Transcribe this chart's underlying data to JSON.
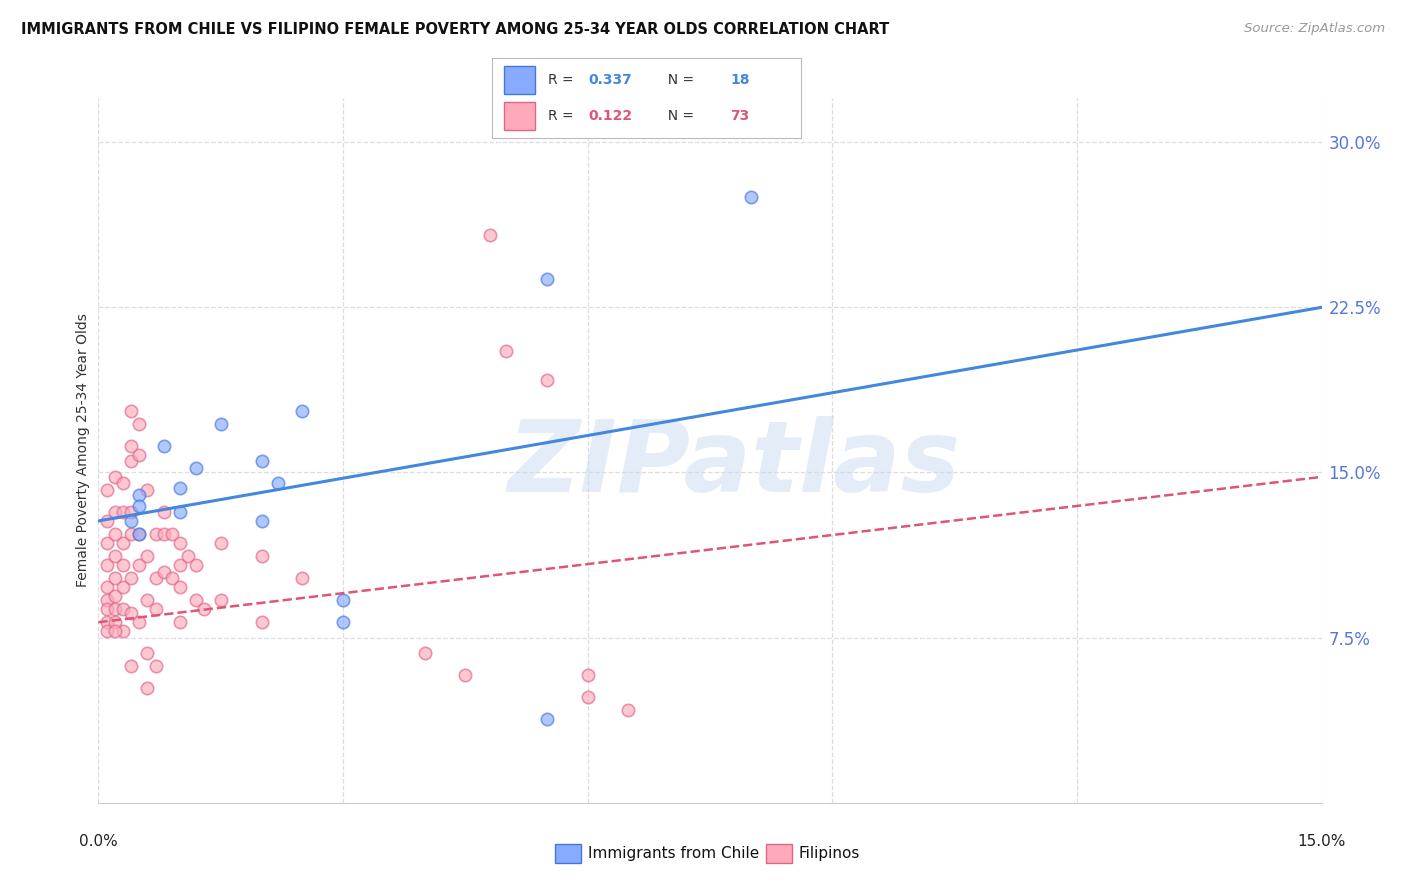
{
  "title": "IMMIGRANTS FROM CHILE VS FILIPINO FEMALE POVERTY AMONG 25-34 YEAR OLDS CORRELATION CHART",
  "source": "Source: ZipAtlas.com",
  "ylabel": "Female Poverty Among 25-34 Year Olds",
  "ytick_labels": [
    "7.5%",
    "15.0%",
    "22.5%",
    "30.0%"
  ],
  "ytick_values": [
    0.075,
    0.15,
    0.225,
    0.3
  ],
  "xlim": [
    0.0,
    0.15
  ],
  "ylim": [
    0.0,
    0.32
  ],
  "watermark": "ZIPatlas",
  "legend_series": [
    {
      "r_text": "R = ",
      "r_val": "0.337",
      "n_text": "   N = ",
      "n_val": "18",
      "color": "#6699ff"
    },
    {
      "r_text": "R = ",
      "r_val": "0.122",
      "n_text": "   N = ",
      "n_val": "73",
      "color": "#ff88aa"
    }
  ],
  "legend_bottom_labels": [
    "Immigrants from Chile",
    "Filipinos"
  ],
  "blue_scatter": [
    [
      0.005,
      0.14
    ],
    [
      0.005,
      0.135
    ],
    [
      0.004,
      0.128
    ],
    [
      0.005,
      0.122
    ],
    [
      0.008,
      0.162
    ],
    [
      0.01,
      0.143
    ],
    [
      0.01,
      0.132
    ],
    [
      0.012,
      0.152
    ],
    [
      0.015,
      0.172
    ],
    [
      0.02,
      0.155
    ],
    [
      0.02,
      0.128
    ],
    [
      0.022,
      0.145
    ],
    [
      0.025,
      0.178
    ],
    [
      0.03,
      0.092
    ],
    [
      0.03,
      0.082
    ],
    [
      0.055,
      0.238
    ],
    [
      0.08,
      0.275
    ],
    [
      0.055,
      0.038
    ]
  ],
  "pink_scatter": [
    [
      0.001,
      0.142
    ],
    [
      0.001,
      0.128
    ],
    [
      0.001,
      0.118
    ],
    [
      0.001,
      0.108
    ],
    [
      0.001,
      0.098
    ],
    [
      0.001,
      0.092
    ],
    [
      0.001,
      0.088
    ],
    [
      0.001,
      0.082
    ],
    [
      0.001,
      0.078
    ],
    [
      0.002,
      0.148
    ],
    [
      0.002,
      0.132
    ],
    [
      0.002,
      0.122
    ],
    [
      0.002,
      0.112
    ],
    [
      0.002,
      0.102
    ],
    [
      0.002,
      0.094
    ],
    [
      0.002,
      0.088
    ],
    [
      0.002,
      0.082
    ],
    [
      0.003,
      0.145
    ],
    [
      0.003,
      0.132
    ],
    [
      0.003,
      0.118
    ],
    [
      0.003,
      0.108
    ],
    [
      0.003,
      0.098
    ],
    [
      0.003,
      0.088
    ],
    [
      0.003,
      0.078
    ],
    [
      0.004,
      0.178
    ],
    [
      0.004,
      0.162
    ],
    [
      0.004,
      0.155
    ],
    [
      0.004,
      0.132
    ],
    [
      0.004,
      0.122
    ],
    [
      0.004,
      0.102
    ],
    [
      0.004,
      0.086
    ],
    [
      0.004,
      0.062
    ],
    [
      0.005,
      0.172
    ],
    [
      0.005,
      0.158
    ],
    [
      0.005,
      0.122
    ],
    [
      0.005,
      0.108
    ],
    [
      0.005,
      0.082
    ],
    [
      0.006,
      0.142
    ],
    [
      0.006,
      0.112
    ],
    [
      0.006,
      0.092
    ],
    [
      0.006,
      0.068
    ],
    [
      0.006,
      0.052
    ],
    [
      0.007,
      0.122
    ],
    [
      0.007,
      0.102
    ],
    [
      0.007,
      0.088
    ],
    [
      0.007,
      0.062
    ],
    [
      0.008,
      0.132
    ],
    [
      0.008,
      0.122
    ],
    [
      0.008,
      0.105
    ],
    [
      0.009,
      0.122
    ],
    [
      0.009,
      0.102
    ],
    [
      0.01,
      0.118
    ],
    [
      0.01,
      0.108
    ],
    [
      0.01,
      0.098
    ],
    [
      0.01,
      0.082
    ],
    [
      0.011,
      0.112
    ],
    [
      0.012,
      0.108
    ],
    [
      0.012,
      0.092
    ],
    [
      0.013,
      0.088
    ],
    [
      0.015,
      0.118
    ],
    [
      0.015,
      0.092
    ],
    [
      0.02,
      0.112
    ],
    [
      0.02,
      0.082
    ],
    [
      0.025,
      0.102
    ],
    [
      0.04,
      0.068
    ],
    [
      0.045,
      0.058
    ],
    [
      0.048,
      0.258
    ],
    [
      0.05,
      0.205
    ],
    [
      0.055,
      0.192
    ],
    [
      0.06,
      0.058
    ],
    [
      0.06,
      0.048
    ],
    [
      0.065,
      0.042
    ],
    [
      0.002,
      0.078
    ]
  ],
  "blue_line_x": [
    0.0,
    0.15
  ],
  "blue_line_y": [
    0.128,
    0.225
  ],
  "pink_line_x": [
    0.0,
    0.15
  ],
  "pink_line_y": [
    0.082,
    0.148
  ],
  "scatter_alpha": 0.65,
  "scatter_size": 80,
  "blue_face": "#88aaff",
  "blue_edge": "#4477dd",
  "pink_face": "#ffaabb",
  "pink_edge": "#dd6688",
  "blue_line_color": "#4488dd",
  "pink_line_color": "#dd5577",
  "grid_color": "#dddddd",
  "bg_color": "#ffffff",
  "right_tick_color": "#5577dd"
}
